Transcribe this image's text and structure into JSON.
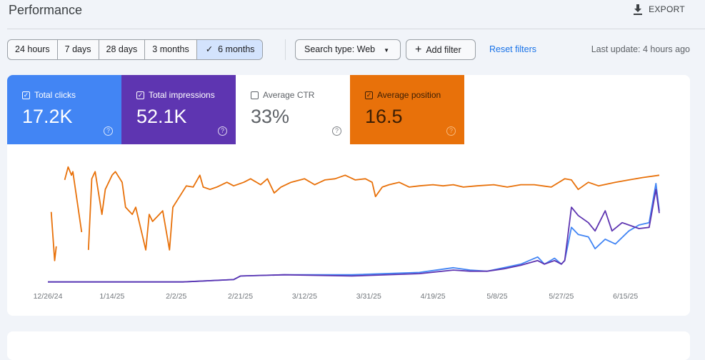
{
  "header": {
    "title": "Performance",
    "export_label": "EXPORT",
    "export_icon": "download-icon"
  },
  "filters": {
    "ranges": [
      "24 hours",
      "7 days",
      "28 days",
      "3 months",
      "6 months"
    ],
    "selected_range": "6 months",
    "search_type": "Search type: Web",
    "add_filter": "Add filter",
    "reset": "Reset filters",
    "last_update": "Last update: 4 hours ago"
  },
  "metrics": [
    {
      "label": "Total clicks",
      "value": "17.2K",
      "checked": true,
      "color": "#4285f4"
    },
    {
      "label": "Total impressions",
      "value": "52.1K",
      "checked": true,
      "color": "#5e35b1"
    },
    {
      "label": "Average CTR",
      "value": "33%",
      "checked": false,
      "color": "#ffffff"
    },
    {
      "label": "Average position",
      "value": "16.5",
      "checked": true,
      "color": "#e8710a"
    }
  ],
  "chart_data": {
    "type": "line",
    "title": "",
    "xlabel": "",
    "ylabel": "",
    "x_unit": "days since 12/26/24",
    "xlim": [
      0,
      181
    ],
    "ylim": [
      0,
      100
    ],
    "y_note": "relative level, no y-axis shown",
    "x_ticks": [
      {
        "day": 0,
        "label": "12/26/24"
      },
      {
        "day": 19,
        "label": "1/14/25"
      },
      {
        "day": 38,
        "label": "2/2/25"
      },
      {
        "day": 57,
        "label": "2/21/25"
      },
      {
        "day": 76,
        "label": "3/12/25"
      },
      {
        "day": 95,
        "label": "3/31/25"
      },
      {
        "day": 114,
        "label": "4/19/25"
      },
      {
        "day": 133,
        "label": "5/8/25"
      },
      {
        "day": 152,
        "label": "5/27/25"
      },
      {
        "day": 171,
        "label": "6/15/25"
      }
    ],
    "series": [
      {
        "name": "Average position",
        "color": "#e8710a",
        "points": [
          [
            1,
            61
          ],
          [
            2,
            20
          ],
          [
            2.5,
            32
          ],
          null,
          [
            5,
            88
          ],
          [
            6,
            99
          ],
          [
            7,
            92
          ],
          [
            7.4,
            95
          ],
          [
            10,
            44
          ],
          null,
          [
            12,
            29
          ],
          [
            13,
            89
          ],
          [
            14,
            95
          ],
          [
            16,
            59
          ],
          [
            17,
            80
          ],
          [
            19,
            92
          ],
          [
            20,
            95
          ],
          [
            22,
            86
          ],
          [
            23,
            65
          ],
          [
            25,
            59
          ],
          [
            26,
            65
          ],
          [
            28,
            41
          ],
          [
            29,
            29
          ],
          [
            30,
            59
          ],
          [
            31,
            53
          ],
          [
            33,
            59
          ],
          [
            34,
            62
          ],
          [
            36,
            29
          ],
          [
            37,
            65
          ],
          [
            39,
            74
          ],
          [
            41,
            83
          ],
          [
            43,
            82
          ],
          [
            45,
            92
          ],
          [
            46,
            82
          ],
          [
            48,
            80
          ],
          [
            50,
            82
          ],
          [
            53,
            86
          ],
          [
            55,
            83
          ],
          [
            58,
            86
          ],
          [
            60,
            89
          ],
          [
            63,
            84
          ],
          [
            65,
            89
          ],
          [
            67,
            77
          ],
          [
            69,
            82
          ],
          [
            72,
            86
          ],
          [
            76,
            89
          ],
          [
            79,
            84
          ],
          [
            82,
            88
          ],
          [
            85,
            89
          ],
          [
            88,
            92
          ],
          [
            91,
            88
          ],
          [
            94,
            89
          ],
          [
            96,
            86
          ],
          [
            97,
            74
          ],
          [
            99,
            82
          ],
          [
            101,
            84
          ],
          [
            104,
            86
          ],
          [
            107,
            82
          ],
          [
            110,
            83
          ],
          [
            114,
            84
          ],
          [
            117,
            83
          ],
          [
            120,
            84
          ],
          [
            123,
            82
          ],
          [
            127,
            83
          ],
          [
            132,
            84
          ],
          [
            136,
            82
          ],
          [
            140,
            84
          ],
          [
            144,
            84
          ],
          [
            149,
            82
          ],
          [
            153,
            89
          ],
          [
            155,
            88
          ],
          [
            157,
            80
          ],
          [
            160,
            86
          ],
          [
            163,
            83
          ],
          [
            168,
            86
          ],
          [
            172,
            88
          ],
          [
            176,
            90
          ],
          [
            181,
            92
          ]
        ]
      },
      {
        "name": "Total clicks",
        "color": "#4285f4",
        "points": [
          [
            0,
            2
          ],
          [
            20,
            2
          ],
          [
            40,
            2
          ],
          [
            55,
            4
          ],
          [
            57,
            7
          ],
          [
            70,
            8
          ],
          [
            90,
            8
          ],
          [
            110,
            10
          ],
          [
            120,
            14
          ],
          [
            125,
            12
          ],
          [
            130,
            11
          ],
          [
            135,
            14
          ],
          [
            140,
            17
          ],
          [
            145,
            23
          ],
          [
            147,
            17
          ],
          [
            150,
            22
          ],
          [
            152,
            17
          ],
          [
            153,
            20
          ],
          [
            155,
            48
          ],
          [
            157,
            42
          ],
          [
            160,
            40
          ],
          [
            162,
            30
          ],
          [
            165,
            38
          ],
          [
            168,
            34
          ],
          [
            172,
            45
          ],
          [
            175,
            50
          ],
          [
            178,
            52
          ],
          [
            180,
            85
          ],
          [
            181,
            62
          ]
        ]
      },
      {
        "name": "Total impressions",
        "color": "#5e35b1",
        "points": [
          [
            0,
            2
          ],
          [
            20,
            2
          ],
          [
            40,
            2
          ],
          [
            55,
            4
          ],
          [
            57,
            7
          ],
          [
            70,
            8
          ],
          [
            90,
            7
          ],
          [
            110,
            9
          ],
          [
            120,
            12
          ],
          [
            125,
            11
          ],
          [
            130,
            11
          ],
          [
            135,
            13
          ],
          [
            140,
            16
          ],
          [
            145,
            20
          ],
          [
            147,
            17
          ],
          [
            150,
            20
          ],
          [
            152,
            17
          ],
          [
            153,
            20
          ],
          [
            155,
            65
          ],
          [
            157,
            58
          ],
          [
            160,
            52
          ],
          [
            162,
            45
          ],
          [
            165,
            62
          ],
          [
            167,
            45
          ],
          [
            170,
            52
          ],
          [
            175,
            47
          ],
          [
            178,
            48
          ],
          [
            180,
            80
          ],
          [
            181,
            60
          ]
        ]
      }
    ]
  }
}
